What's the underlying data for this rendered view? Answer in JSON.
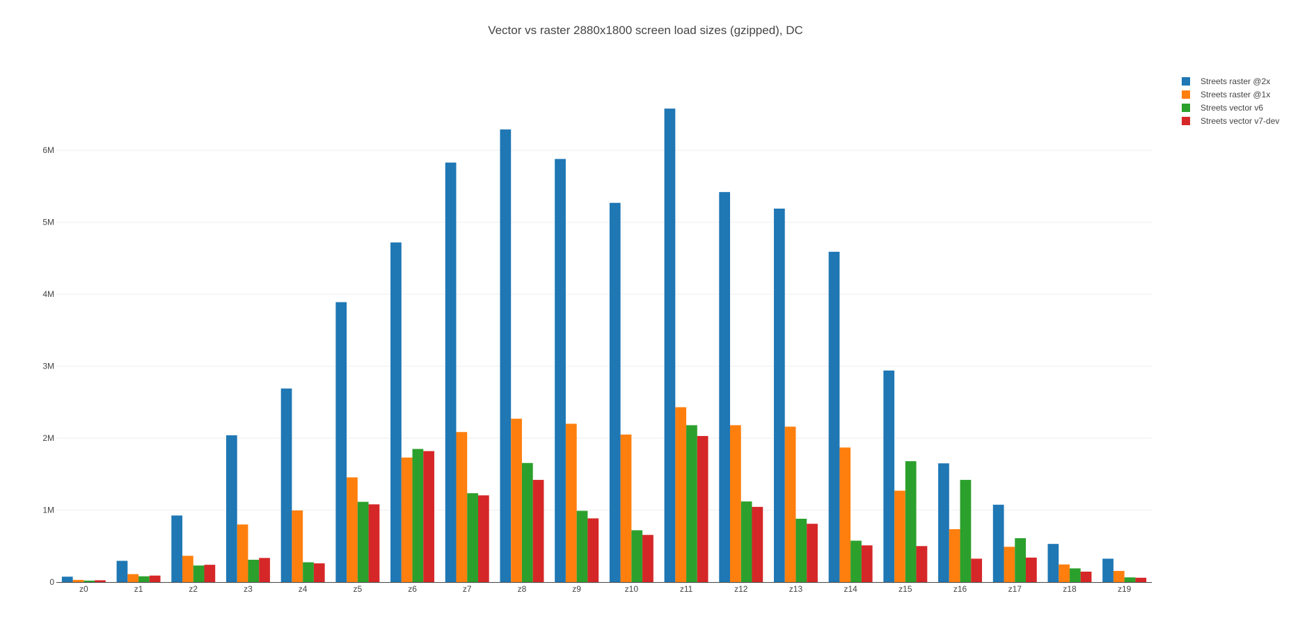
{
  "chart_data": {
    "type": "bar",
    "title": "Vector vs raster 2880x1800 screen load sizes (gzipped), DC",
    "xlabel": "",
    "ylabel": "",
    "ylim": [
      0,
      7200000
    ],
    "yticks": [
      {
        "value": 0,
        "label": "0"
      },
      {
        "value": 1000000,
        "label": "1M"
      },
      {
        "value": 2000000,
        "label": "2M"
      },
      {
        "value": 3000000,
        "label": "3M"
      },
      {
        "value": 4000000,
        "label": "4M"
      },
      {
        "value": 5000000,
        "label": "5M"
      },
      {
        "value": 6000000,
        "label": "6M"
      }
    ],
    "grid": true,
    "legend_position": "top-right",
    "categories": [
      "z0",
      "z1",
      "z2",
      "z3",
      "z4",
      "z5",
      "z6",
      "z7",
      "z8",
      "z9",
      "z10",
      "z11",
      "z12",
      "z13",
      "z14",
      "z15",
      "z16",
      "z17",
      "z18",
      "z19"
    ],
    "series": [
      {
        "name": "Streets raster @2x",
        "color": "#1f77b4",
        "values": [
          75000,
          295000,
          925000,
          2040000,
          2690000,
          3890000,
          4720000,
          5830000,
          6290000,
          5880000,
          5270000,
          6580000,
          5420000,
          5190000,
          4590000,
          2940000,
          1650000,
          1075000,
          530000,
          325000
        ]
      },
      {
        "name": "Streets raster @1x",
        "color": "#ff7f0e",
        "values": [
          30000,
          110000,
          365000,
          800000,
          995000,
          1455000,
          1730000,
          2085000,
          2270000,
          2200000,
          2050000,
          2430000,
          2180000,
          2160000,
          1870000,
          1270000,
          735000,
          490000,
          245000,
          155000
        ]
      },
      {
        "name": "Streets vector v6",
        "color": "#2ca02c",
        "values": [
          20000,
          80000,
          230000,
          310000,
          275000,
          1115000,
          1850000,
          1235000,
          1655000,
          990000,
          720000,
          2180000,
          1120000,
          880000,
          575000,
          1680000,
          1420000,
          610000,
          190000,
          65000
        ]
      },
      {
        "name": "Streets vector v7-dev",
        "color": "#d62728",
        "values": [
          25000,
          90000,
          240000,
          335000,
          260000,
          1080000,
          1820000,
          1205000,
          1420000,
          885000,
          655000,
          2030000,
          1045000,
          810000,
          510000,
          500000,
          325000,
          340000,
          145000,
          60000
        ]
      }
    ]
  }
}
